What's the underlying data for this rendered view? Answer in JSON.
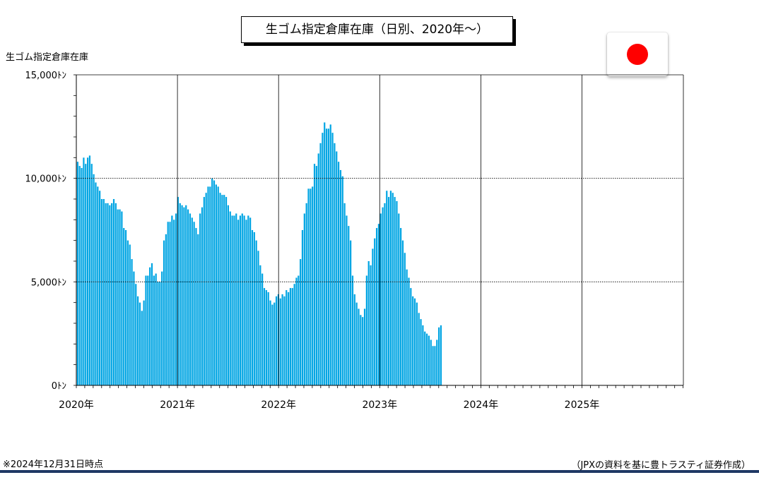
{
  "chart_data": {
    "type": "bar",
    "title": "生ゴム指定倉庫在庫（日別、2020年～）",
    "ylabel": "生ゴム指定倉庫在庫",
    "ylim": [
      0,
      15000
    ],
    "y_ticks": [
      "15,000ﾄﾝ",
      "10,000ﾄﾝ",
      "5,000ﾄﾝ",
      "0ﾄﾝ"
    ],
    "x_range": [
      "2020-01",
      "2026-01"
    ],
    "x_tick_labels": [
      "2020年",
      "2021年",
      "2022年",
      "2023年",
      "2024年",
      "2025年"
    ],
    "grid": true,
    "color": "#00a5e3",
    "values": [
      10800,
      10600,
      10500,
      11000,
      10700,
      11000,
      11100,
      10700,
      10200,
      9800,
      9600,
      9400,
      9000,
      9000,
      8800,
      8800,
      8700,
      8800,
      9000,
      8800,
      8500,
      8500,
      8400,
      7600,
      7500,
      7000,
      6800,
      6100,
      5500,
      4900,
      4300,
      4000,
      3600,
      4100,
      5300,
      5300,
      5700,
      5900,
      5300,
      5400,
      5000,
      5000,
      5500,
      7000,
      7300,
      7900,
      7900,
      8200,
      8000,
      8300,
      9100,
      8800,
      8700,
      8600,
      8700,
      8500,
      8300,
      8100,
      7900,
      7600,
      7300,
      8300,
      8600,
      9100,
      9300,
      9600,
      9600,
      10000,
      9900,
      9700,
      9600,
      9300,
      9200,
      9200,
      9100,
      8700,
      8400,
      8200,
      8200,
      8300,
      8000,
      8200,
      8300,
      8200,
      8000,
      8200,
      8100,
      7500,
      7400,
      7000,
      6500,
      5800,
      5400,
      4700,
      4600,
      4500,
      4100,
      3900,
      4000,
      4300,
      4400,
      4200,
      4400,
      4300,
      4600,
      4500,
      4700,
      4700,
      4900,
      5200,
      5300,
      6100,
      7500,
      8300,
      8800,
      9500,
      9500,
      9600,
      10700,
      10600,
      11200,
      11700,
      12200,
      12700,
      12400,
      12400,
      12600,
      12200,
      11700,
      11300,
      10800,
      10400,
      10100,
      8800,
      8200,
      7700,
      7000,
      5300,
      4400,
      4000,
      3700,
      3400,
      3300,
      3700,
      5300,
      6000,
      5800,
      6600,
      7100,
      7600,
      7800,
      8300,
      8600,
      8800,
      9400,
      9100,
      9400,
      9300,
      9100,
      8900,
      8300,
      7600,
      7000,
      6400,
      5600,
      5200,
      4700,
      4300,
      4200,
      4000,
      3500,
      3200,
      2900,
      2600,
      2500,
      2400,
      2200,
      1900,
      1900,
      2200,
      2800,
      2900
    ]
  },
  "footnote": "※2024年12月31日時点",
  "source": "（JPXの資料を基に豊トラスティ証券作成）",
  "colors": {
    "bar": "#00a5e3",
    "rule": "#1f3864",
    "flag_red": "#ff0000"
  },
  "icon": "japan-flag-icon"
}
